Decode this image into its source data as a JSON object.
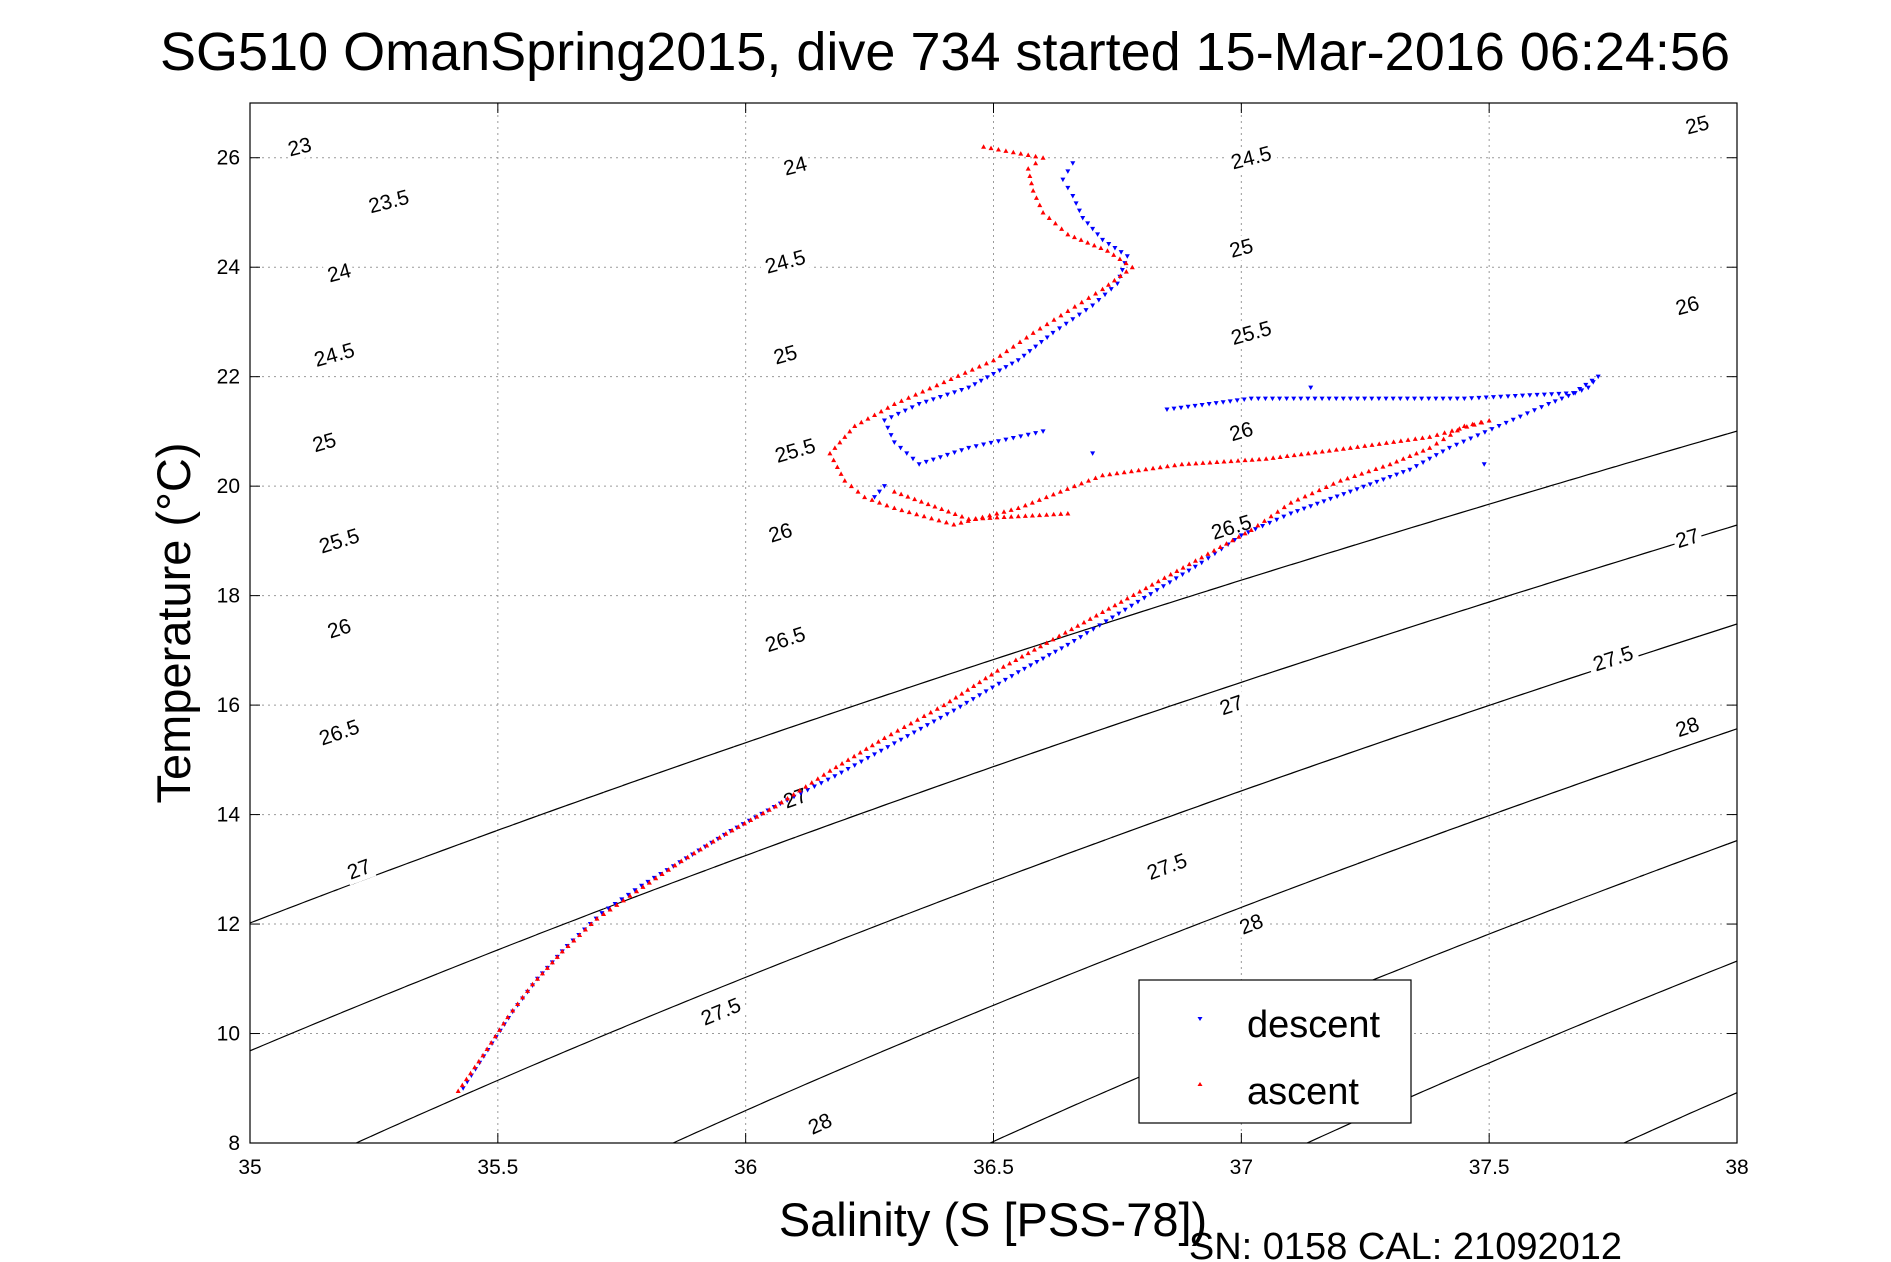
{
  "chart_data": {
    "type": "scatter",
    "title": "SG510 OmanSpring2015, dive 734 started 15-Mar-2016 06:24:56",
    "xlabel": "Salinity (S [PSS-78])",
    "ylabel": "Temperature (°C)",
    "xlim": [
      35,
      38
    ],
    "ylim": [
      8,
      27
    ],
    "xticks": [
      "35",
      "35.5",
      "36",
      "36.5",
      "37",
      "37.5",
      "38"
    ],
    "yticks": [
      "8",
      "10",
      "12",
      "14",
      "16",
      "18",
      "20",
      "22",
      "24",
      "26"
    ],
    "grid": true,
    "legend_position": "bottom-right",
    "footer": "SN: 0158  CAL: 21092012",
    "colors": {
      "descent": "#0000ff",
      "ascent": "#ff0000",
      "contour": "#000000"
    },
    "density_contours": [
      {
        "label": "23",
        "at": [
          [
            35.1,
            26.2
          ]
        ]
      },
      {
        "label": "23.5",
        "at": [
          [
            35.28,
            25.2
          ]
        ]
      },
      {
        "label": "24",
        "at": [
          [
            35.18,
            23.9
          ],
          [
            36.1,
            25.85
          ]
        ]
      },
      {
        "label": "24.5",
        "at": [
          [
            35.17,
            22.4
          ],
          [
            36.08,
            24.1
          ],
          [
            37.02,
            26.0
          ]
        ]
      },
      {
        "label": "25",
        "at": [
          [
            35.15,
            20.8
          ],
          [
            36.08,
            22.4
          ],
          [
            37.0,
            24.35
          ],
          [
            37.92,
            26.6
          ]
        ]
      },
      {
        "label": "25.5",
        "at": [
          [
            35.18,
            19.0
          ],
          [
            36.1,
            20.65
          ],
          [
            37.02,
            22.8
          ]
        ]
      },
      {
        "label": "26",
        "at": [
          [
            35.18,
            17.4
          ],
          [
            36.07,
            19.15
          ],
          [
            37.0,
            21.0
          ],
          [
            37.9,
            23.3
          ]
        ]
      },
      {
        "label": "26.5",
        "at": [
          [
            35.18,
            15.5
          ],
          [
            36.08,
            17.2
          ],
          [
            36.98,
            19.25
          ]
        ]
      },
      {
        "label": "27",
        "at": [
          [
            35.22,
            13.0
          ],
          [
            36.1,
            14.3
          ],
          [
            36.98,
            16.0
          ],
          [
            37.9,
            19.05
          ]
        ]
      },
      {
        "label": "27.5",
        "at": [
          [
            35.95,
            10.4
          ],
          [
            36.85,
            13.05
          ],
          [
            37.75,
            16.85
          ]
        ]
      },
      {
        "label": "28",
        "at": [
          [
            36.15,
            8.35
          ],
          [
            37.02,
            12.0
          ],
          [
            37.9,
            15.6
          ]
        ]
      }
    ],
    "series": [
      {
        "name": "descent",
        "marker": "down-triangle",
        "points": [
          [
            35.43,
            9.0
          ],
          [
            35.48,
            9.7
          ],
          [
            35.53,
            10.4
          ],
          [
            35.58,
            11.0
          ],
          [
            35.64,
            11.6
          ],
          [
            35.71,
            12.2
          ],
          [
            35.79,
            12.7
          ],
          [
            35.88,
            13.2
          ],
          [
            35.97,
            13.7
          ],
          [
            36.07,
            14.2
          ],
          [
            36.18,
            14.7
          ],
          [
            36.3,
            15.3
          ],
          [
            36.42,
            15.9
          ],
          [
            36.55,
            16.6
          ],
          [
            36.65,
            17.1
          ],
          [
            36.74,
            17.6
          ],
          [
            36.83,
            18.1
          ],
          [
            36.92,
            18.6
          ],
          [
            37.0,
            19.1
          ],
          [
            37.1,
            19.5
          ],
          [
            37.22,
            19.9
          ],
          [
            37.34,
            20.3
          ],
          [
            37.42,
            20.7
          ],
          [
            37.52,
            21.1
          ],
          [
            37.62,
            21.5
          ],
          [
            37.7,
            21.8
          ],
          [
            37.72,
            22.0
          ],
          [
            37.67,
            21.7
          ],
          [
            37.45,
            21.6
          ],
          [
            37.22,
            21.6
          ],
          [
            37.02,
            21.6
          ],
          [
            36.85,
            21.4
          ],
          [
            36.6,
            21.0
          ],
          [
            36.45,
            20.7
          ],
          [
            36.35,
            20.4
          ],
          [
            36.3,
            20.8
          ],
          [
            36.28,
            21.2
          ],
          [
            36.35,
            21.5
          ],
          [
            36.45,
            21.8
          ],
          [
            36.55,
            22.3
          ],
          [
            36.62,
            22.8
          ],
          [
            36.7,
            23.3
          ],
          [
            36.75,
            23.7
          ],
          [
            36.77,
            24.2
          ],
          [
            36.72,
            24.5
          ],
          [
            36.68,
            24.9
          ],
          [
            36.66,
            25.3
          ],
          [
            36.64,
            25.6
          ],
          [
            36.66,
            25.9
          ],
          [
            36.28,
            20.0
          ],
          [
            36.26,
            19.8
          ],
          [
            36.7,
            20.6
          ],
          [
            37.14,
            21.8
          ],
          [
            37.49,
            20.4
          ]
        ]
      },
      {
        "name": "ascent",
        "marker": "up-triangle",
        "points": [
          [
            35.42,
            8.95
          ],
          [
            35.47,
            9.6
          ],
          [
            35.52,
            10.3
          ],
          [
            35.57,
            10.9
          ],
          [
            35.63,
            11.5
          ],
          [
            35.7,
            12.1
          ],
          [
            35.78,
            12.6
          ],
          [
            35.87,
            13.15
          ],
          [
            35.96,
            13.65
          ],
          [
            36.06,
            14.15
          ],
          [
            36.17,
            14.8
          ],
          [
            36.28,
            15.4
          ],
          [
            36.4,
            16.0
          ],
          [
            36.52,
            16.7
          ],
          [
            36.62,
            17.2
          ],
          [
            36.72,
            17.7
          ],
          [
            36.82,
            18.2
          ],
          [
            36.92,
            18.7
          ],
          [
            37.02,
            19.2
          ],
          [
            37.1,
            19.7
          ],
          [
            37.2,
            20.1
          ],
          [
            37.3,
            20.4
          ],
          [
            37.38,
            20.7
          ],
          [
            37.45,
            21.1
          ],
          [
            37.5,
            21.2
          ],
          [
            37.38,
            20.9
          ],
          [
            37.22,
            20.7
          ],
          [
            37.05,
            20.5
          ],
          [
            36.88,
            20.4
          ],
          [
            36.72,
            20.2
          ],
          [
            36.55,
            19.6
          ],
          [
            36.42,
            19.3
          ],
          [
            36.3,
            19.6
          ],
          [
            36.24,
            19.8
          ],
          [
            36.2,
            20.1
          ],
          [
            36.17,
            20.6
          ],
          [
            36.22,
            21.1
          ],
          [
            36.3,
            21.5
          ],
          [
            36.4,
            21.9
          ],
          [
            36.5,
            22.3
          ],
          [
            36.58,
            22.8
          ],
          [
            36.65,
            23.2
          ],
          [
            36.72,
            23.6
          ],
          [
            36.78,
            24.0
          ],
          [
            36.73,
            24.3
          ],
          [
            36.65,
            24.6
          ],
          [
            36.6,
            25.0
          ],
          [
            36.58,
            25.4
          ],
          [
            36.57,
            25.8
          ],
          [
            36.6,
            26.0
          ],
          [
            36.48,
            26.2
          ],
          [
            36.65,
            19.5
          ],
          [
            36.45,
            19.4
          ],
          [
            36.3,
            19.9
          ]
        ]
      }
    ]
  }
}
